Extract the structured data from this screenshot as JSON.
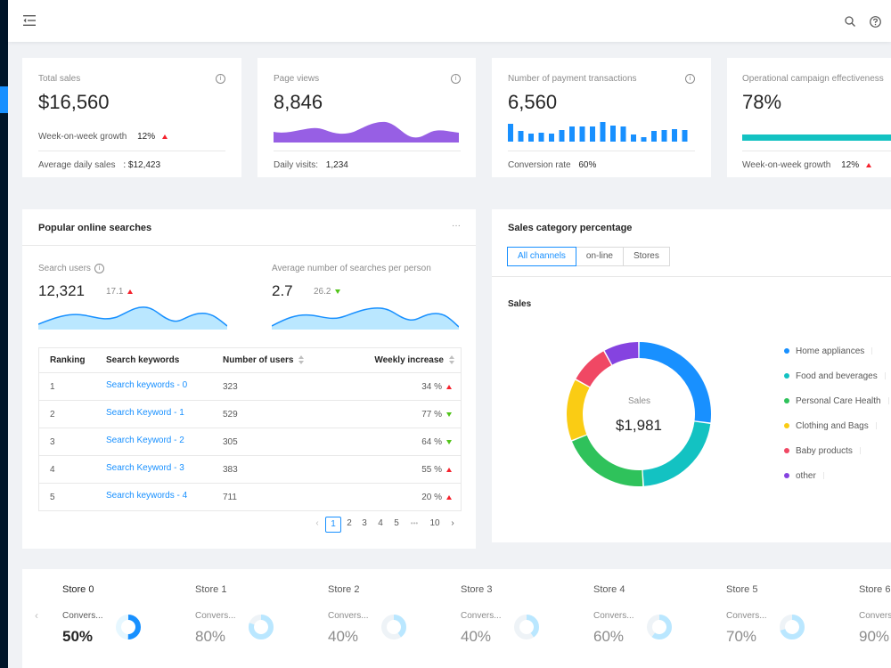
{
  "icons": {
    "menu": "menu-fold-icon",
    "search": "search-icon",
    "help": "question-circle-icon",
    "info": "info-circle-icon"
  },
  "colors": {
    "primary": "#1890ff",
    "purple": "#975fe4",
    "teal": "#13c2c2",
    "up": "#f5222d",
    "down": "#52c41a"
  },
  "stats": {
    "total_sales": {
      "title": "Total sales",
      "value": "$16,560",
      "wow_label": "Week-on-week growth",
      "wow_value": "12%",
      "footer_label": "Average daily sales",
      "footer_value": ": $12,423"
    },
    "page_views": {
      "title": "Page views",
      "value": "8,846",
      "footer_label": "Daily visits:",
      "footer_value": "1,234"
    },
    "payments": {
      "title": "Number of payment transactions",
      "value": "6,560",
      "footer_label": "Conversion rate",
      "footer_value": "60%"
    },
    "campaign": {
      "title": "Operational campaign effectiveness",
      "value": "78%",
      "progress": 0.78,
      "footer_label": "Week-on-week growth",
      "footer_value": "12%"
    }
  },
  "searches": {
    "title": "Popular online searches",
    "more": "···",
    "users": {
      "label": "Search users",
      "value": "12,321",
      "change": "17.1",
      "trend": "up"
    },
    "avg": {
      "label": "Average number of searches per person",
      "value": "2.7",
      "change": "26.2",
      "trend": "down"
    },
    "columns": {
      "rank": "Ranking",
      "keyword": "Search keywords",
      "users": "Number of users",
      "increase": "Weekly increase"
    },
    "rows": [
      {
        "rank": "1",
        "keyword": "Search keywords - 0",
        "users": "323",
        "increase": "34 %",
        "trend": "up"
      },
      {
        "rank": "2",
        "keyword": "Search Keyword - 1",
        "users": "529",
        "increase": "77 %",
        "trend": "down"
      },
      {
        "rank": "3",
        "keyword": "Search Keyword - 2",
        "users": "305",
        "increase": "64 %",
        "trend": "down"
      },
      {
        "rank": "4",
        "keyword": "Search Keyword - 3",
        "users": "383",
        "increase": "55 %",
        "trend": "up"
      },
      {
        "rank": "5",
        "keyword": "Search keywords - 4",
        "users": "711",
        "increase": "20 %",
        "trend": "up"
      }
    ],
    "pagination": {
      "prev": "‹",
      "pages": [
        "1",
        "2",
        "3",
        "4",
        "5"
      ],
      "ellipsis": "•••",
      "last": "10",
      "next": "›",
      "current": "1"
    }
  },
  "category": {
    "title": "Sales category percentage",
    "tabs": [
      "All channels",
      "on-line",
      "Stores"
    ],
    "active_tab": 0,
    "section_label": "Sales",
    "center_label": "Sales",
    "center_value": "$1,981",
    "legend": [
      {
        "name": "Home appliances",
        "color": "#1890ff"
      },
      {
        "name": "Food and beverages",
        "color": "#13c2c2"
      },
      {
        "name": "Personal Care Health",
        "color": "#2fc25b"
      },
      {
        "name": "Clothing and Bags",
        "color": "#facc14"
      },
      {
        "name": "Baby products",
        "color": "#f04864"
      },
      {
        "name": "other",
        "color": "#8543e0"
      }
    ]
  },
  "chart_data": {
    "type": "pie",
    "categories": [
      "Home appliances",
      "Food and beverages",
      "Personal Care Health",
      "Clothing and Bags",
      "Baby products",
      "other"
    ],
    "values": [
      27,
      22,
      20,
      14,
      9,
      8
    ]
  },
  "stores": {
    "prev": "‹",
    "items": [
      {
        "name": "Store 0",
        "label": "Convers...",
        "value": "50%",
        "rate": 0.5
      },
      {
        "name": "Store 1",
        "label": "Convers...",
        "value": "80%",
        "rate": 0.8
      },
      {
        "name": "Store 2",
        "label": "Convers...",
        "value": "40%",
        "rate": 0.4
      },
      {
        "name": "Store 3",
        "label": "Convers...",
        "value": "40%",
        "rate": 0.4
      },
      {
        "name": "Store 4",
        "label": "Convers...",
        "value": "60%",
        "rate": 0.6
      },
      {
        "name": "Store 5",
        "label": "Convers...",
        "value": "70%",
        "rate": 0.7
      },
      {
        "name": "Store 6",
        "label": "Convers...",
        "value": "90%",
        "rate": 0.9
      }
    ]
  }
}
